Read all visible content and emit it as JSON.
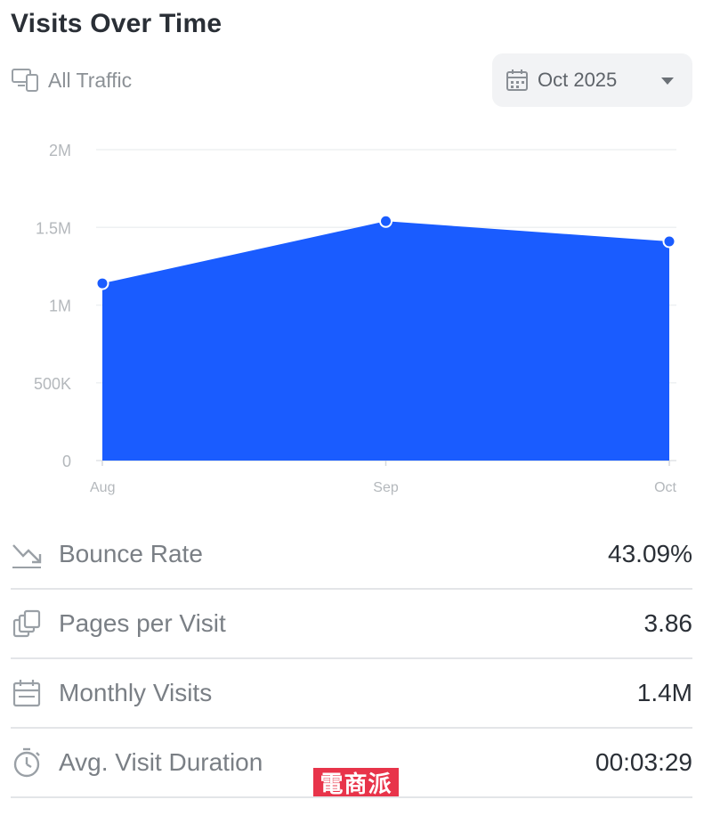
{
  "header": {
    "title": "Visits Over Time"
  },
  "filter": {
    "label": "All Traffic",
    "icon": "devices-icon"
  },
  "date_selector": {
    "value": "Oct 2025",
    "icon": "calendar-icon"
  },
  "chart_data": {
    "type": "area",
    "categories": [
      "Aug",
      "Sep",
      "Oct"
    ],
    "series": [
      {
        "values": [
          1140000,
          1540000,
          1410000
        ]
      }
    ],
    "yticks": [
      {
        "value": 0,
        "label": "0"
      },
      {
        "value": 500000,
        "label": "500K"
      },
      {
        "value": 1000000,
        "label": "1M"
      },
      {
        "value": 1500000,
        "label": "1.5M"
      },
      {
        "value": 2000000,
        "label": "2M"
      }
    ],
    "ylim": [
      0,
      2000000
    ],
    "grid": true,
    "color": "#1a5cff"
  },
  "metrics": [
    {
      "label": "Bounce Rate",
      "value": "43.09%",
      "icon": "trend-down-icon"
    },
    {
      "label": "Pages per Visit",
      "value": "3.86",
      "icon": "pages-icon"
    },
    {
      "label": "Monthly Visits",
      "value": "1.4M",
      "icon": "calendar-icon"
    },
    {
      "label": "Avg. Visit Duration",
      "value": "00:03:29",
      "icon": "stopwatch-icon"
    }
  ],
  "watermark": {
    "text": "電商派"
  }
}
